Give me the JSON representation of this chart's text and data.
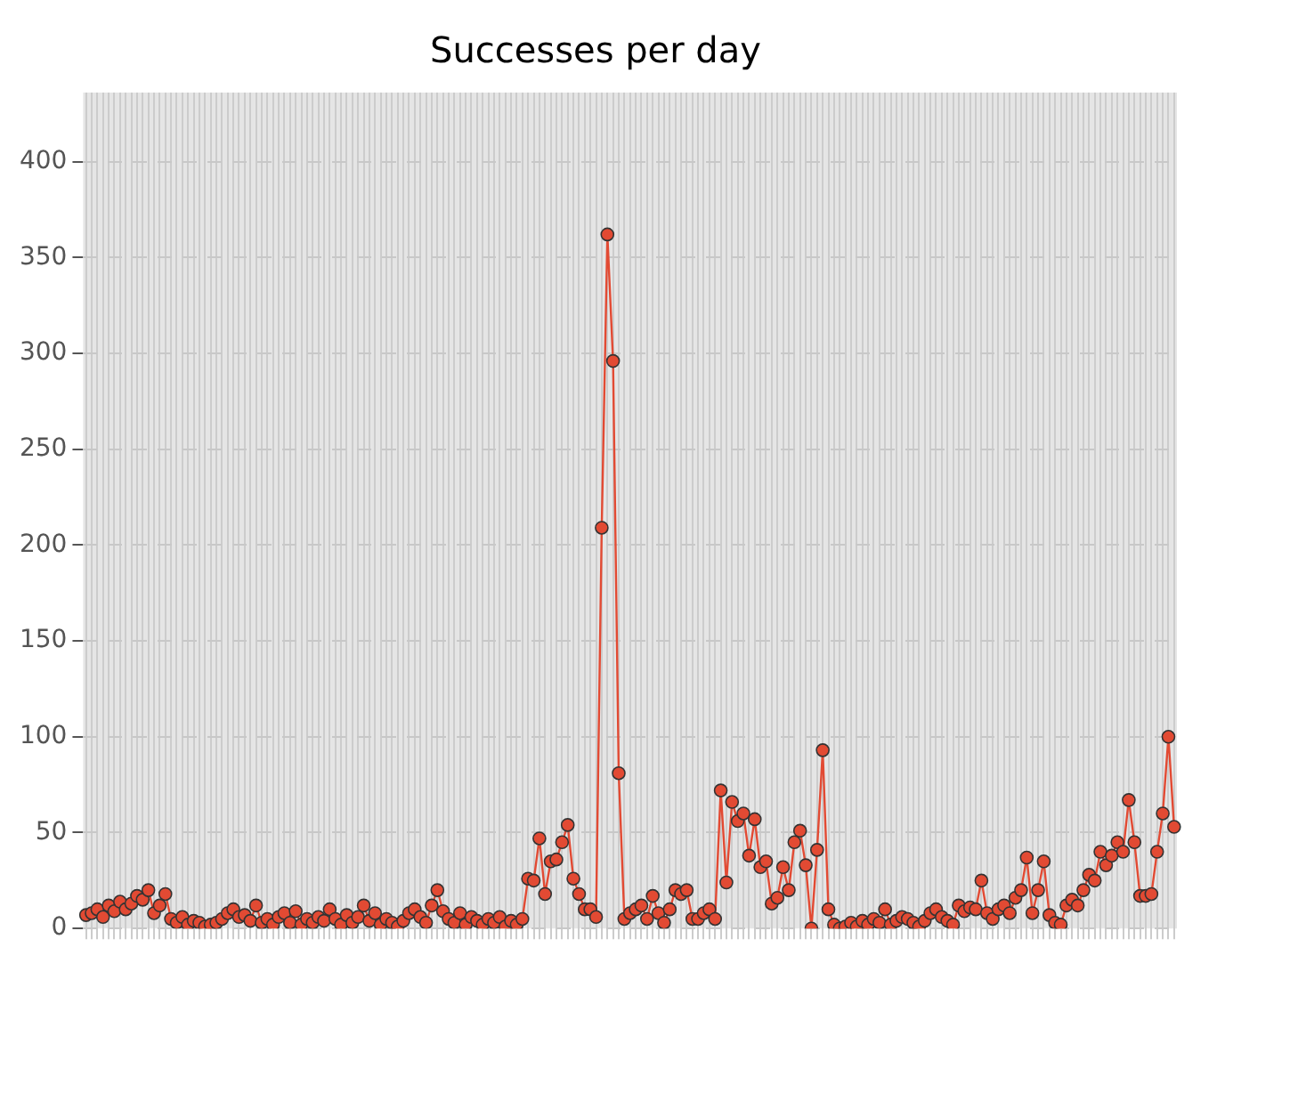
{
  "chart_data": {
    "type": "line",
    "title": "Successes per day",
    "categories": [
      null,
      null,
      null,
      null,
      null,
      null,
      null,
      null,
      null,
      null,
      null,
      null,
      null,
      null,
      null,
      null,
      null,
      null,
      null,
      null,
      null,
      null,
      null,
      null,
      null,
      null,
      null,
      null,
      null,
      null,
      null,
      null,
      null,
      null,
      null,
      null,
      null,
      null,
      null,
      null,
      null,
      null,
      null,
      null,
      null,
      null,
      null,
      null,
      null,
      null,
      null,
      null,
      null,
      null,
      null,
      null,
      null,
      null,
      null,
      null,
      null,
      null,
      null,
      null,
      null,
      null,
      null,
      null,
      null,
      null,
      null,
      null,
      null,
      null,
      null,
      null,
      null,
      null,
      null,
      null,
      null,
      null,
      null,
      null,
      null,
      null,
      null,
      null,
      null,
      null,
      null,
      null,
      null,
      null,
      null,
      null,
      null,
      null,
      null,
      null,
      null,
      null,
      null,
      null,
      null,
      null,
      null,
      null,
      null,
      null,
      null,
      null,
      null,
      null,
      null,
      null,
      null,
      null,
      null,
      null,
      null,
      null,
      null,
      null,
      null,
      null,
      null,
      null,
      null,
      null,
      null,
      null,
      null,
      null,
      null,
      null,
      null,
      null,
      null,
      null,
      null,
      null,
      null,
      null,
      null,
      null,
      null,
      null,
      null,
      null,
      null,
      null,
      null,
      null,
      null,
      null,
      null,
      null,
      null,
      null,
      null,
      null,
      null,
      null,
      null,
      null,
      null,
      null,
      null,
      null,
      null,
      null,
      null,
      null,
      null,
      null,
      null,
      null,
      null,
      null,
      null,
      null,
      null,
      null,
      null,
      null,
      null,
      null,
      null,
      null,
      null,
      null,
      null
    ],
    "series": [
      {
        "color": "#e24a33",
        "values": [
          7,
          8,
          10,
          6,
          12,
          9,
          14,
          10,
          13,
          17,
          15,
          20,
          8,
          12,
          18,
          5,
          3,
          6,
          2,
          4,
          3,
          1,
          2,
          3,
          5,
          8,
          10,
          6,
          7,
          4,
          12,
          3,
          5,
          2,
          6,
          8,
          3,
          9,
          2,
          5,
          3,
          6,
          4,
          10,
          5,
          2,
          7,
          3,
          6,
          12,
          4,
          8,
          2,
          5,
          3,
          1,
          4,
          8,
          10,
          6,
          3,
          12,
          20,
          9,
          5,
          3,
          8,
          2,
          6,
          4,
          2,
          5,
          3,
          6,
          1,
          4,
          2,
          5,
          26,
          25,
          47,
          18,
          35,
          36,
          45,
          54,
          26,
          18,
          10,
          10,
          6,
          209,
          362,
          296,
          81,
          5,
          8,
          10,
          12,
          5,
          17,
          8,
          3,
          10,
          20,
          18,
          20,
          5,
          5,
          8,
          10,
          5,
          72,
          24,
          66,
          56,
          60,
          38,
          57,
          32,
          35,
          13,
          16,
          32,
          20,
          45,
          51,
          33,
          0,
          41,
          93,
          10,
          2,
          0,
          1,
          3,
          1,
          4,
          2,
          5,
          3,
          10,
          2,
          4,
          6,
          5,
          3,
          1,
          4,
          8,
          10,
          6,
          4,
          2,
          12,
          9,
          11,
          10,
          25,
          8,
          5,
          10,
          12,
          8,
          16,
          20,
          37,
          8,
          20,
          35,
          7,
          3,
          2,
          12,
          15,
          12,
          20,
          28,
          25,
          40,
          33,
          38,
          45,
          40,
          67,
          45,
          17,
          17,
          18,
          40,
          60,
          100,
          53
        ]
      }
    ],
    "ylim": [
      0,
      436
    ],
    "yticks": [
      0,
      50,
      100,
      150,
      200,
      250,
      300,
      350,
      400
    ],
    "grid": true,
    "marker": "circle",
    "line_style": "solid",
    "legend": false
  }
}
